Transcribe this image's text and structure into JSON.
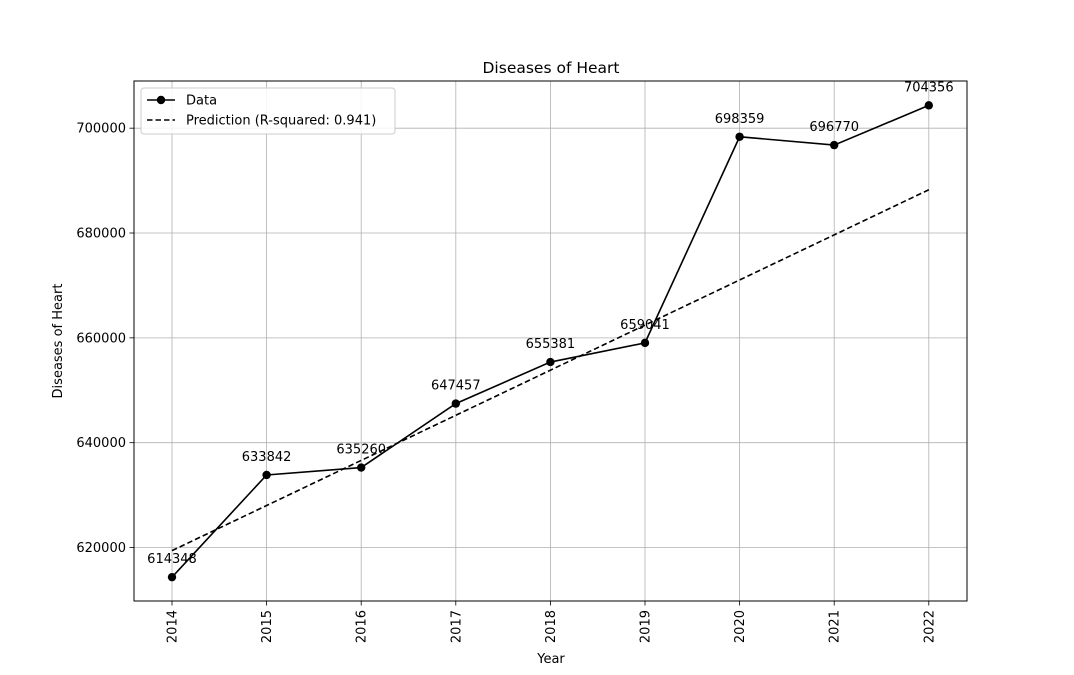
{
  "chart_data": {
    "type": "line",
    "title": "Diseases of Heart",
    "xlabel": "Year",
    "ylabel": "Diseases of Heart",
    "x": [
      "2014",
      "2015",
      "2016",
      "2017",
      "2018",
      "2019",
      "2020",
      "2021",
      "2022"
    ],
    "series": [
      {
        "name": "Data",
        "style": "solid-with-markers",
        "color": "#000000",
        "values": [
          614348,
          633842,
          635260,
          647457,
          655381,
          659041,
          698359,
          696770,
          704356
        ],
        "labels": [
          "614348",
          "633842",
          "635260",
          "647457",
          "655381",
          "659041",
          "698359",
          "696770",
          "704356"
        ]
      },
      {
        "name": "Prediction (R-squared: 0.941)",
        "style": "dashed",
        "color": "#000000",
        "values": [
          619410,
          628015,
          636620,
          645225,
          653830,
          662435,
          671040,
          679645,
          688250
        ]
      }
    ],
    "yticks": [
      620000,
      640000,
      660000,
      680000,
      700000
    ],
    "ytick_labels": [
      "620000",
      "640000",
      "660000",
      "680000",
      "700000"
    ],
    "ylim": [
      609800,
      709000
    ],
    "grid": true,
    "legend_position": "top-left"
  }
}
